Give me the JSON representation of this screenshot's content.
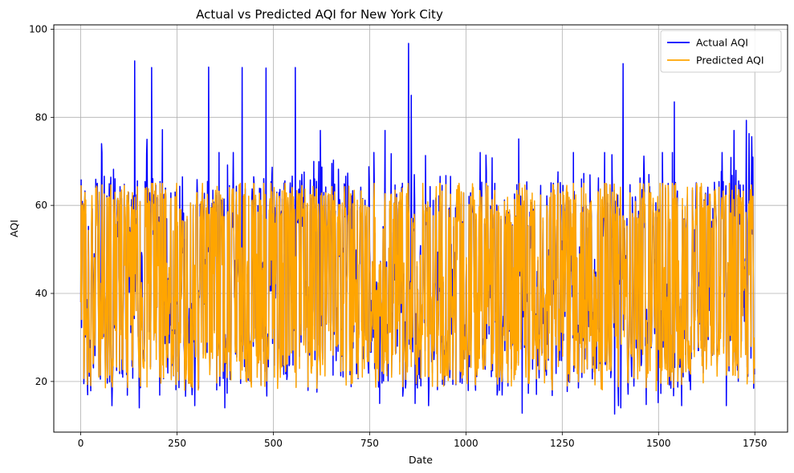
{
  "chart_data": {
    "type": "line",
    "title": "Actual vs Predicted AQI for New York City",
    "xlabel": "Date",
    "ylabel": "AQI",
    "xlim": [
      -70,
      1835
    ],
    "ylim": [
      8.5,
      101
    ],
    "xticks": [
      0,
      250,
      500,
      750,
      1000,
      1250,
      1500,
      1750
    ],
    "yticks": [
      20,
      40,
      60,
      80,
      100
    ],
    "grid": true,
    "legend_position": "top-right",
    "n_points": 1750,
    "series": [
      {
        "name": "Actual AQI",
        "color": "#0000ff",
        "profile": {
          "min": 12.5,
          "max": 97,
          "typical_low": 17,
          "typical_high": 66
        },
        "peaks": [
          {
            "x": 140,
            "y": 92.8
          },
          {
            "x": 184,
            "y": 91.3
          },
          {
            "x": 212,
            "y": 77.2
          },
          {
            "x": 332,
            "y": 91.4
          },
          {
            "x": 419,
            "y": 91.3
          },
          {
            "x": 481,
            "y": 91.2
          },
          {
            "x": 557,
            "y": 91.3
          },
          {
            "x": 851,
            "y": 96.8
          },
          {
            "x": 858,
            "y": 85.0
          },
          {
            "x": 1408,
            "y": 92.2
          },
          {
            "x": 1541,
            "y": 83.5
          },
          {
            "x": 1728,
            "y": 79.3
          },
          {
            "x": 1735,
            "y": 76.3
          },
          {
            "x": 1742,
            "y": 75.6
          },
          {
            "x": 1696,
            "y": 77.0
          },
          {
            "x": 54,
            "y": 74.0
          },
          {
            "x": 172,
            "y": 75.0
          },
          {
            "x": 1137,
            "y": 75.1
          },
          {
            "x": 622,
            "y": 77.0
          },
          {
            "x": 790,
            "y": 77.0
          }
        ],
        "troughs": [
          {
            "x": 152,
            "y": 14.0
          },
          {
            "x": 296,
            "y": 14.5
          },
          {
            "x": 374,
            "y": 14.0
          },
          {
            "x": 1146,
            "y": 12.8
          },
          {
            "x": 1386,
            "y": 12.6
          },
          {
            "x": 1402,
            "y": 14.0
          },
          {
            "x": 776,
            "y": 15.0
          },
          {
            "x": 868,
            "y": 15.0
          },
          {
            "x": 1499,
            "y": 15.2
          }
        ]
      },
      {
        "name": "Predicted AQI",
        "color": "#ffa500",
        "profile": {
          "min": 17.5,
          "max": 65,
          "typical_low": 19,
          "typical_high": 64.5
        }
      }
    ]
  }
}
